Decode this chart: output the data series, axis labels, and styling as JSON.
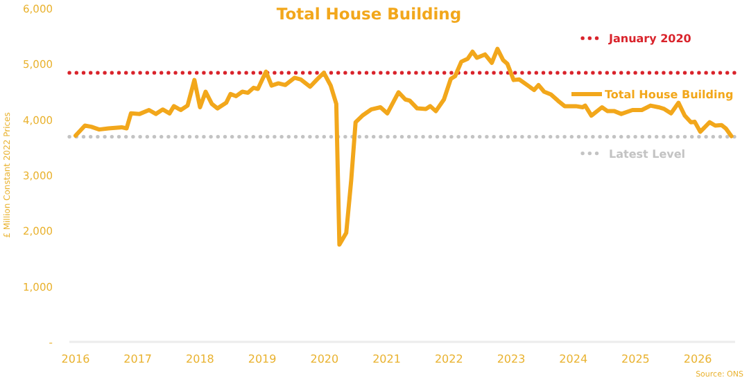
{
  "chart_data": {
    "type": "line",
    "title": "Total House Building",
    "ylabel": "£ Million Constant 2022 Prices",
    "annotations": [
      "Source: ONS"
    ],
    "xlim": [
      2015.9,
      2026.6
    ],
    "xticks": [
      2016,
      2017,
      2018,
      2019,
      2020,
      2021,
      2022,
      2023,
      2024,
      2025,
      2026
    ],
    "ylim": [
      0,
      6000
    ],
    "yticks": [
      {
        "value": 0,
        "label": "-"
      },
      {
        "value": 1000,
        "label": "1,000"
      },
      {
        "value": 2000,
        "label": "2,000"
      },
      {
        "value": 3000,
        "label": "3,000"
      },
      {
        "value": 4000,
        "label": "4,000"
      },
      {
        "value": 5000,
        "label": "5,000"
      },
      {
        "value": 6000,
        "label": "6,000"
      }
    ],
    "grid": false,
    "legend": "right",
    "line_style": "solid",
    "series": [
      {
        "name": "Total House Building",
        "color": "#f2a71b",
        "x": [
          2016.0,
          2016.15,
          2016.25,
          2016.38,
          2016.53,
          2016.74,
          2016.82,
          2016.89,
          2017.03,
          2017.18,
          2017.29,
          2017.4,
          2017.51,
          2017.58,
          2017.69,
          2017.8,
          2017.91,
          2018.0,
          2018.09,
          2018.19,
          2018.28,
          2018.42,
          2018.49,
          2018.58,
          2018.68,
          2018.77,
          2018.86,
          2018.93,
          2019.06,
          2019.15,
          2019.26,
          2019.37,
          2019.52,
          2019.62,
          2019.77,
          2019.88,
          2019.99,
          2020.1,
          2020.19,
          2020.24,
          2020.35,
          2020.43,
          2020.5,
          2020.61,
          2020.75,
          2020.9,
          2021.01,
          2021.19,
          2021.3,
          2021.37,
          2021.49,
          2021.63,
          2021.7,
          2021.79,
          2021.92,
          2022.03,
          2022.1,
          2022.2,
          2022.3,
          2022.38,
          2022.45,
          2022.58,
          2022.69,
          2022.78,
          2022.87,
          2022.94,
          2023.04,
          2023.13,
          2023.27,
          2023.37,
          2023.44,
          2023.53,
          2023.64,
          2023.75,
          2023.86,
          2024.04,
          2024.15,
          2024.19,
          2024.29,
          2024.46,
          2024.55,
          2024.66,
          2024.77,
          2024.95,
          2025.1,
          2025.24,
          2025.37,
          2025.46,
          2025.57,
          2025.69,
          2025.79,
          2025.89,
          2025.95,
          2026.04,
          2026.19,
          2026.28,
          2026.38,
          2026.45,
          2026.54
        ],
        "values": [
          3710,
          3890,
          3870,
          3820,
          3840,
          3860,
          3840,
          4110,
          4100,
          4170,
          4100,
          4180,
          4110,
          4240,
          4170,
          4250,
          4710,
          4220,
          4500,
          4280,
          4200,
          4300,
          4460,
          4420,
          4500,
          4480,
          4570,
          4550,
          4860,
          4610,
          4650,
          4620,
          4750,
          4720,
          4590,
          4720,
          4840,
          4610,
          4280,
          1750,
          1960,
          2910,
          3950,
          4070,
          4180,
          4220,
          4110,
          4490,
          4360,
          4340,
          4200,
          4190,
          4240,
          4150,
          4360,
          4730,
          4780,
          5040,
          5090,
          5220,
          5110,
          5170,
          5020,
          5270,
          5070,
          5000,
          4710,
          4720,
          4610,
          4530,
          4620,
          4500,
          4450,
          4340,
          4240,
          4240,
          4220,
          4250,
          4070,
          4220,
          4150,
          4150,
          4100,
          4170,
          4170,
          4250,
          4220,
          4190,
          4110,
          4300,
          4070,
          3950,
          3960,
          3780,
          3950,
          3890,
          3900,
          3840,
          3700
        ]
      }
    ],
    "ref_lines": [
      {
        "axis": "y",
        "value": 4840,
        "label": "January 2020",
        "color": "#d9232b",
        "line_style": "dotted"
      },
      {
        "axis": "y",
        "value": 3690,
        "label": "Latest Level",
        "color": "#c3c3c3",
        "line_style": "dotted"
      }
    ]
  }
}
